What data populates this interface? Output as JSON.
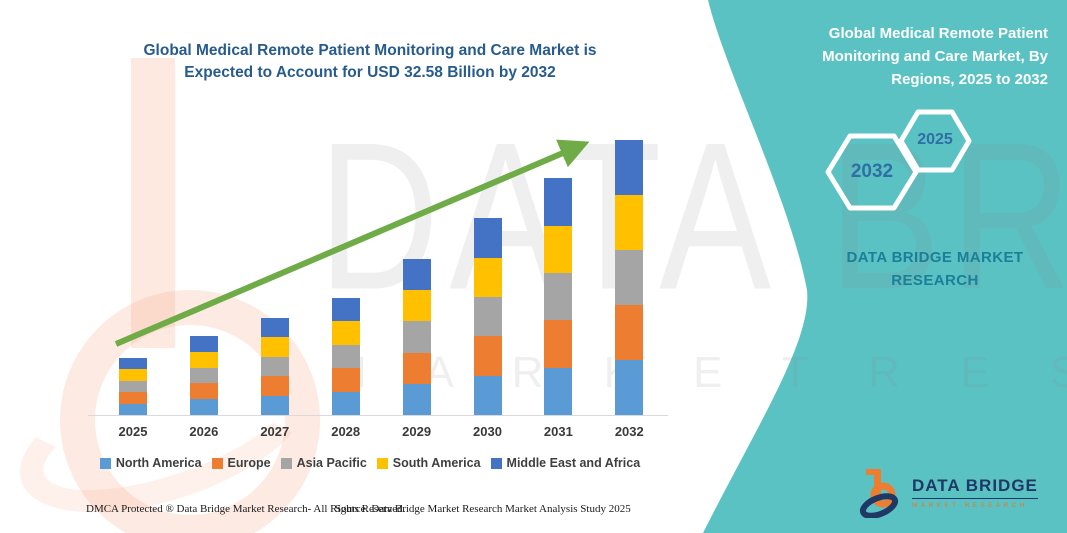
{
  "header": {
    "chart_title": "Global Medical Remote Patient Monitoring and Care Market is Expected to Account for USD 32.58 Billion by 2032"
  },
  "chart_data": {
    "type": "bar",
    "stacked": true,
    "title": "Global Medical Remote Patient Monitoring and Care Market is Expected to Account for USD 32.58 Billion by 2032",
    "unit": "USD Billion",
    "categories": [
      "2025",
      "2026",
      "2027",
      "2028",
      "2029",
      "2030",
      "2031",
      "2032"
    ],
    "totals": [
      6.76,
      9.33,
      11.5,
      13.9,
      18.48,
      23.3,
      28.05,
      32.58
    ],
    "series": [
      {
        "name": "North America",
        "color": "#5B9BD5",
        "values": [
          1.35,
          1.87,
          2.3,
          2.78,
          3.7,
          4.66,
          5.61,
          6.52
        ]
      },
      {
        "name": "Europe",
        "color": "#ED7D31",
        "values": [
          1.35,
          1.87,
          2.3,
          2.78,
          3.7,
          4.66,
          5.61,
          6.52
        ]
      },
      {
        "name": "Asia Pacific",
        "color": "#A5A5A5",
        "values": [
          1.35,
          1.87,
          2.3,
          2.78,
          3.7,
          4.66,
          5.61,
          6.52
        ]
      },
      {
        "name": "South America",
        "color": "#FFC000",
        "values": [
          1.35,
          1.87,
          2.3,
          2.78,
          3.7,
          4.66,
          5.61,
          6.52
        ]
      },
      {
        "name": "Middle East and Africa",
        "color": "#4472C4",
        "values": [
          1.35,
          1.87,
          2.3,
          2.78,
          3.7,
          4.66,
          5.61,
          6.52
        ]
      }
    ],
    "ylim": [
      0,
      35
    ],
    "grid": false,
    "y_axis_visible": false,
    "legend_position": "bottom",
    "annotations": [
      "green upward trend arrow from 2025 to 2032"
    ]
  },
  "panel": {
    "title": "Global Medical Remote Patient Monitoring and Care Market, By Regions, 2025 to 2032",
    "hexagon_years": {
      "large": "2032",
      "small": "2025"
    },
    "caption": "DATA BRIDGE MARKET RESEARCH"
  },
  "logo": {
    "name": "DATA BRIDGE",
    "tagline": "MARKET RESEARCH"
  },
  "footer": {
    "dmca": "DMCA Protected ® Data Bridge Market Research-  All Rights Reserved.",
    "source": "Source: Data Bridge Market Research  Market Analysis Study 2025"
  },
  "watermark": {
    "brand": "DATA BRIDGE",
    "letters": "M A R K E T   R E S E A R C H"
  },
  "colors": {
    "teal": "#5BC2C4",
    "title_blue": "#275B8E",
    "arrow_green": "#6FAC47",
    "hex_year_blue": "#2F6FA3",
    "panel_caption_teal": "#1B7F98",
    "logo_navy": "#1F3864",
    "logo_orange": "#E87722"
  }
}
